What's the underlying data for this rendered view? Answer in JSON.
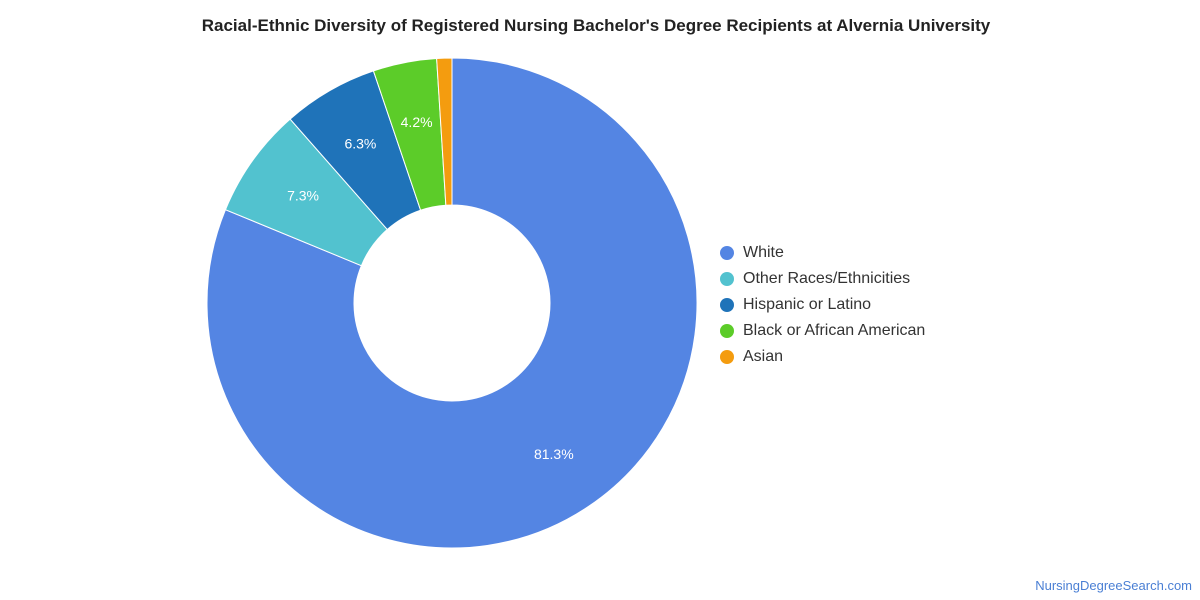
{
  "chart_data": {
    "type": "pie",
    "title": "Racial-Ethnic Diversity of Registered Nursing Bachelor's Degree Recipients at Alvernia University",
    "donut": true,
    "legend_position": "right",
    "slices": [
      {
        "name": "White",
        "value": 81.3,
        "label": "81.3%",
        "color": "#5485e3"
      },
      {
        "name": "Other Races/Ethnicities",
        "value": 7.3,
        "label": "7.3%",
        "color": "#52c2cf"
      },
      {
        "name": "Hispanic or Latino",
        "value": 6.3,
        "label": "6.3%",
        "color": "#1f73b9"
      },
      {
        "name": "Black or African American",
        "value": 4.2,
        "label": "4.2%",
        "color": "#5ccc29"
      },
      {
        "name": "Asian",
        "value": 1.0,
        "label": "",
        "color": "#f49c0f"
      }
    ]
  },
  "credit": "NursingDegreeSearch.com"
}
